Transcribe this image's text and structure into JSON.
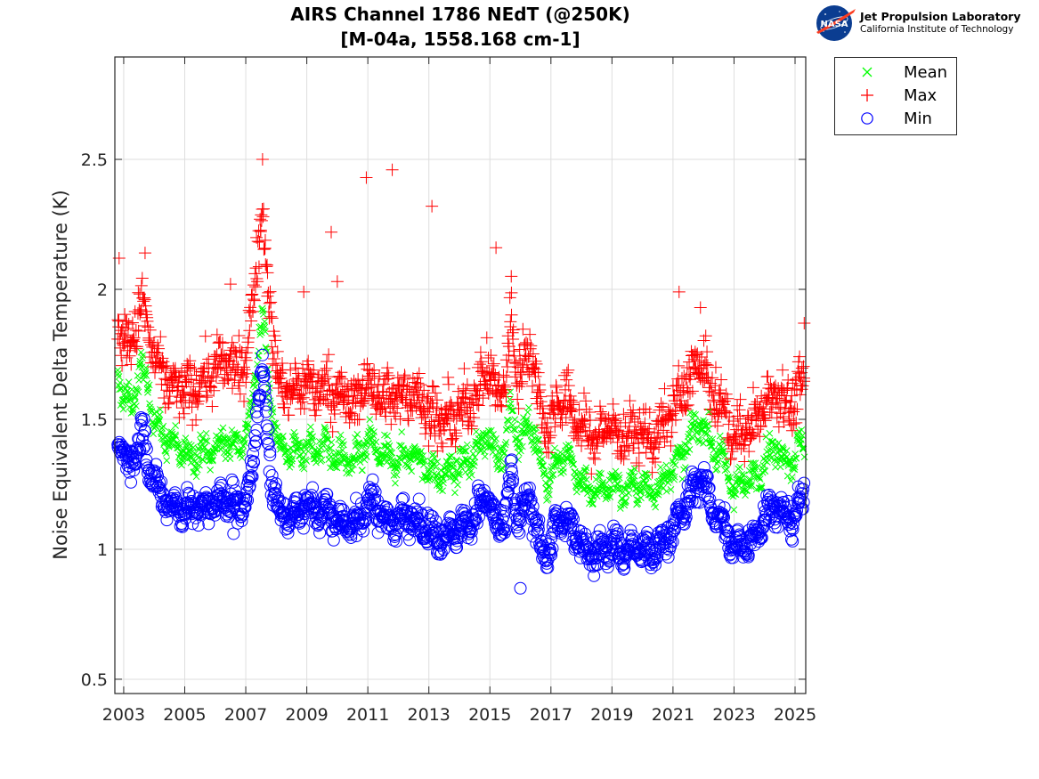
{
  "header": {
    "title_line1": "AIRS Channel 1786 NEdT (@250K)",
    "title_line2": "[M-04a, 1558.168 cm-1]"
  },
  "logo": {
    "emblem_text": "NASA",
    "name": "Jet Propulsion Laboratory",
    "subtitle": "California Institute of Technology"
  },
  "colors": {
    "mean": "#00ff00",
    "max": "#ff0000",
    "min": "#0000ff",
    "grid": "#dedede",
    "axis": "#262626"
  },
  "chart_data": {
    "type": "scatter",
    "title": "AIRS Channel 1786 NEdT (@250K) [M-04a, 1558.168 cm-1]",
    "xlabel": "",
    "ylabel": "Noise Equivalent Delta Temperature (K)",
    "xlim": [
      2002.71,
      2025.35
    ],
    "ylim": [
      0.445,
      2.894
    ],
    "xticks": [
      2003,
      2005,
      2007,
      2009,
      2011,
      2013,
      2015,
      2017,
      2019,
      2021,
      2023,
      2025
    ],
    "xtick_labels": [
      "2003",
      "2005",
      "2007",
      "2009",
      "2011",
      "2013",
      "2015",
      "2017",
      "2019",
      "2021",
      "2023",
      "2025"
    ],
    "yticks": [
      0.5,
      1,
      1.5,
      2,
      2.5
    ],
    "ytick_labels": [
      "0.5",
      "1",
      "1.5",
      "2",
      "2.5"
    ],
    "grid": true,
    "legend_position": "outside-top-right",
    "legend": [
      "Mean",
      "Max",
      "Min"
    ],
    "series_envelope_note": "Approximate per-epoch central values read from the dense scatter; spread describes typical vertical scatter width (K).",
    "x": [
      2002.8,
      2003.0,
      2003.2,
      2003.4,
      2003.6,
      2003.8,
      2004.0,
      2004.3,
      2004.6,
      2004.9,
      2005.2,
      2005.5,
      2005.8,
      2006.1,
      2006.4,
      2006.7,
      2007.0,
      2007.2,
      2007.4,
      2007.55,
      2007.7,
      2007.9,
      2008.1,
      2008.4,
      2008.7,
      2009.0,
      2009.3,
      2009.6,
      2009.9,
      2010.2,
      2010.5,
      2010.8,
      2011.0,
      2011.3,
      2011.6,
      2011.9,
      2012.2,
      2012.5,
      2012.8,
      2013.1,
      2013.4,
      2013.7,
      2014.0,
      2014.3,
      2014.6,
      2014.9,
      2015.2,
      2015.5,
      2015.7,
      2015.9,
      2016.1,
      2016.3,
      2016.5,
      2016.7,
      2016.9,
      2017.2,
      2017.5,
      2017.8,
      2018.1,
      2018.4,
      2018.7,
      2019.0,
      2019.3,
      2019.6,
      2019.9,
      2020.2,
      2020.5,
      2020.8,
      2021.1,
      2021.4,
      2021.7,
      2021.9,
      2022.2,
      2022.5,
      2022.8,
      2023.0,
      2023.2,
      2023.5,
      2023.8,
      2024.0,
      2024.3,
      2024.6,
      2024.9,
      2025.1,
      2025.3
    ],
    "series": [
      {
        "name": "Mean",
        "marker": "x",
        "values": [
          1.68,
          1.58,
          1.55,
          1.62,
          1.7,
          1.62,
          1.5,
          1.44,
          1.4,
          1.38,
          1.36,
          1.38,
          1.37,
          1.4,
          1.42,
          1.4,
          1.44,
          1.55,
          1.75,
          1.92,
          1.7,
          1.5,
          1.4,
          1.38,
          1.37,
          1.4,
          1.38,
          1.4,
          1.36,
          1.35,
          1.34,
          1.36,
          1.42,
          1.38,
          1.35,
          1.34,
          1.36,
          1.38,
          1.33,
          1.3,
          1.28,
          1.3,
          1.32,
          1.34,
          1.38,
          1.45,
          1.36,
          1.38,
          1.55,
          1.42,
          1.44,
          1.5,
          1.42,
          1.32,
          1.26,
          1.34,
          1.36,
          1.3,
          1.25,
          1.22,
          1.24,
          1.26,
          1.22,
          1.24,
          1.25,
          1.22,
          1.24,
          1.28,
          1.32,
          1.38,
          1.46,
          1.5,
          1.42,
          1.36,
          1.3,
          1.22,
          1.25,
          1.26,
          1.3,
          1.34,
          1.4,
          1.36,
          1.34,
          1.38,
          1.42
        ],
        "spread": 0.12
      },
      {
        "name": "Max",
        "marker": "+",
        "values": [
          1.88,
          1.8,
          1.78,
          1.86,
          1.95,
          1.85,
          1.72,
          1.66,
          1.62,
          1.62,
          1.6,
          1.65,
          1.66,
          1.7,
          1.72,
          1.68,
          1.72,
          1.9,
          2.2,
          2.3,
          2.05,
          1.8,
          1.62,
          1.6,
          1.62,
          1.66,
          1.6,
          1.64,
          1.6,
          1.58,
          1.56,
          1.6,
          1.66,
          1.6,
          1.58,
          1.58,
          1.6,
          1.62,
          1.55,
          1.52,
          1.48,
          1.5,
          1.52,
          1.56,
          1.62,
          1.7,
          1.6,
          1.62,
          1.9,
          1.65,
          1.72,
          1.8,
          1.66,
          1.52,
          1.46,
          1.56,
          1.58,
          1.5,
          1.46,
          1.42,
          1.46,
          1.48,
          1.42,
          1.44,
          1.46,
          1.42,
          1.44,
          1.5,
          1.56,
          1.62,
          1.7,
          1.72,
          1.62,
          1.56,
          1.5,
          1.42,
          1.45,
          1.46,
          1.52,
          1.56,
          1.62,
          1.58,
          1.56,
          1.6,
          1.64
        ],
        "spread": 0.22
      },
      {
        "name": "Min",
        "marker": "o",
        "values": [
          1.45,
          1.36,
          1.32,
          1.38,
          1.45,
          1.35,
          1.25,
          1.2,
          1.17,
          1.16,
          1.15,
          1.16,
          1.16,
          1.18,
          1.2,
          1.16,
          1.18,
          1.3,
          1.55,
          1.7,
          1.45,
          1.22,
          1.15,
          1.13,
          1.14,
          1.18,
          1.14,
          1.16,
          1.12,
          1.1,
          1.09,
          1.12,
          1.2,
          1.15,
          1.12,
          1.1,
          1.12,
          1.14,
          1.08,
          1.06,
          1.05,
          1.06,
          1.08,
          1.1,
          1.15,
          1.22,
          1.08,
          1.1,
          1.3,
          1.1,
          1.15,
          1.2,
          1.1,
          1.0,
          0.99,
          1.1,
          1.12,
          1.05,
          1.0,
          0.98,
          1.0,
          1.02,
          0.99,
          1.0,
          1.0,
          0.98,
          1.0,
          1.05,
          1.1,
          1.16,
          1.24,
          1.28,
          1.18,
          1.12,
          1.06,
          0.99,
          1.02,
          1.03,
          1.08,
          1.12,
          1.18,
          1.13,
          1.12,
          1.15,
          1.2
        ],
        "spread": 0.13
      }
    ],
    "outliers": [
      {
        "series": "Max",
        "x": 2009.8,
        "y": 2.22
      },
      {
        "series": "Max",
        "x": 2010.0,
        "y": 2.03
      },
      {
        "series": "Max",
        "x": 2008.9,
        "y": 1.99
      },
      {
        "series": "Max",
        "x": 2010.95,
        "y": 2.43
      },
      {
        "series": "Max",
        "x": 2011.8,
        "y": 2.46
      },
      {
        "series": "Max",
        "x": 2013.1,
        "y": 2.32
      },
      {
        "series": "Max",
        "x": 2015.2,
        "y": 2.16
      },
      {
        "series": "Max",
        "x": 2015.7,
        "y": 2.05
      },
      {
        "series": "Max",
        "x": 2007.55,
        "y": 2.5
      },
      {
        "series": "Max",
        "x": 2006.5,
        "y": 2.02
      },
      {
        "series": "Max",
        "x": 2021.2,
        "y": 1.99
      },
      {
        "series": "Max",
        "x": 2021.9,
        "y": 1.93
      },
      {
        "series": "Max",
        "x": 2025.3,
        "y": 1.87
      },
      {
        "series": "Max",
        "x": 2003.7,
        "y": 2.14
      },
      {
        "series": "Max",
        "x": 2002.85,
        "y": 2.12
      },
      {
        "series": "Min",
        "x": 2016.0,
        "y": 0.85
      },
      {
        "series": "Min",
        "x": 2006.6,
        "y": 1.06
      }
    ]
  }
}
